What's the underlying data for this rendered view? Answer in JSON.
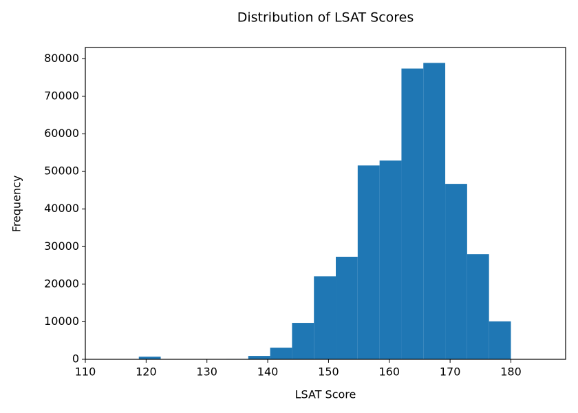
{
  "chart_data": {
    "type": "histogram",
    "title": "Distribution of LSAT Scores",
    "x_label": "LSAT Score",
    "y_label": "Frequency",
    "bins": [
      118.8,
      122.4,
      126,
      129.6,
      133.2,
      136.8,
      140.4,
      144,
      147.6,
      151.2,
      154.8,
      158.4,
      162,
      165.6,
      169.2,
      172.8,
      176.4,
      180
    ],
    "counts": [
      700,
      0,
      0,
      0,
      100,
      900,
      3100,
      9700,
      22100,
      27300,
      51600,
      52900,
      77400,
      78900,
      46700,
      28000,
      10100
    ],
    "color": "#1f77b4",
    "xlim": [
      110,
      189
    ],
    "xticks": [
      110,
      120,
      130,
      140,
      150,
      160,
      170,
      180
    ],
    "ylim": [
      0,
      83000
    ],
    "yticks": [
      0,
      10000,
      20000,
      30000,
      40000,
      50000,
      60000,
      70000,
      80000
    ]
  }
}
